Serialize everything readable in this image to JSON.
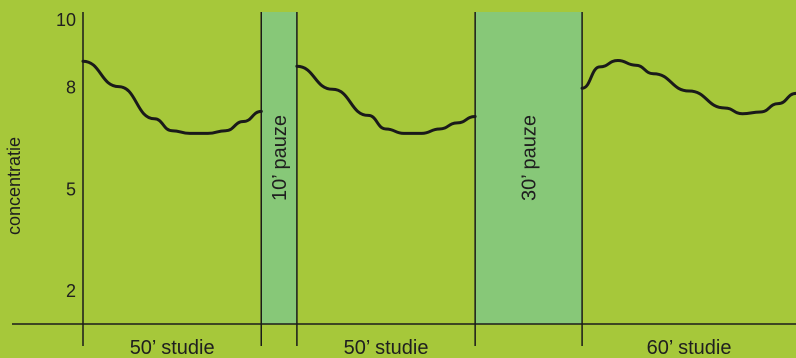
{
  "chart_data": {
    "type": "line",
    "ylabel": "concentratie",
    "ylim": [
      1,
      10.2
    ],
    "yticks": [
      2,
      5,
      8,
      10
    ],
    "colors": {
      "background": "#a6c83a",
      "pause": "#87c878",
      "line": "#1a1a1a"
    },
    "segments": [
      {
        "kind": "study",
        "label": "50’ studie",
        "minutes": 50,
        "x": [
          0,
          10,
          20,
          25,
          30,
          35,
          40,
          45,
          50
        ],
        "y": [
          8.75,
          8.0,
          7.05,
          6.7,
          6.62,
          6.62,
          6.7,
          6.97,
          7.27
        ]
      },
      {
        "kind": "pause",
        "label": "10’ pauze",
        "minutes": 10
      },
      {
        "kind": "study",
        "label": "50’ studie",
        "minutes": 50,
        "x": [
          0,
          10,
          20,
          25,
          30,
          35,
          40,
          45,
          50
        ],
        "y": [
          8.6,
          7.92,
          7.15,
          6.75,
          6.62,
          6.62,
          6.75,
          6.93,
          7.12
        ]
      },
      {
        "kind": "pause",
        "label": "30’ pauze",
        "minutes": 30
      },
      {
        "kind": "study",
        "label": "60’ studie",
        "minutes": 60,
        "x": [
          0,
          5,
          10,
          15,
          20,
          30,
          40,
          45,
          50,
          55,
          60
        ],
        "y": [
          7.95,
          8.58,
          8.77,
          8.63,
          8.38,
          7.87,
          7.37,
          7.2,
          7.25,
          7.5,
          7.8
        ]
      }
    ]
  }
}
